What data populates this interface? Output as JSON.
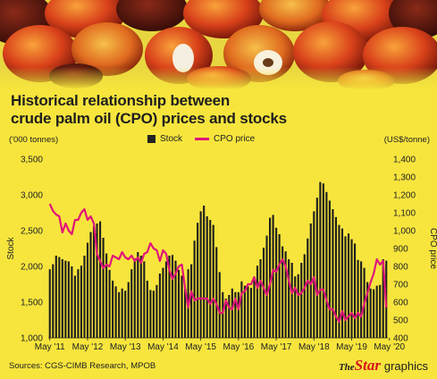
{
  "title_lines": [
    "Historical relationship between",
    "crude palm oil (CPO) prices and stocks"
  ],
  "units": {
    "left": "('000 tonnes)",
    "right": "(US$/tonne)"
  },
  "legend": {
    "stock": "Stock",
    "cpo": "CPO price"
  },
  "source": "Sources: CGS-CIMB Research, MPOB",
  "brand": {
    "the": "The",
    "star": "Star",
    "graphics": "graphics"
  },
  "colors": {
    "background": "#f7e53d",
    "bars": "#1e1e1e",
    "line": "#e0157a"
  },
  "chart_data": {
    "type": "bar+line",
    "left_axis": {
      "label": "Stock",
      "ylim": [
        1000,
        3500
      ],
      "ticks": [
        "1,000",
        "1,500",
        "2,000",
        "2,500",
        "3,000",
        "3,500"
      ]
    },
    "right_axis": {
      "label": "CPO price",
      "ylim": [
        400,
        1400
      ],
      "ticks": [
        "400",
        "500",
        "600",
        "700",
        "800",
        "900",
        "1,000",
        "1,100",
        "1,200",
        "1,300",
        "1,400"
      ]
    },
    "x_ticks": [
      "May '11",
      "May '12",
      "May '13",
      "May '14",
      "May '15",
      "May '16",
      "May '17",
      "May '18",
      "May '19",
      "May '20"
    ],
    "start": "May 2011",
    "series": [
      {
        "name": "Stock",
        "axis": "left",
        "values": [
          1960,
          2030,
          2150,
          2130,
          2100,
          2080,
          2070,
          2000,
          1870,
          1960,
          2010,
          2150,
          2330,
          2480,
          2560,
          2600,
          2630,
          2400,
          2180,
          1950,
          1800,
          1720,
          1640,
          1690,
          1660,
          1780,
          1960,
          2110,
          2200,
          2150,
          2070,
          1800,
          1670,
          1660,
          1740,
          1900,
          1980,
          2070,
          2150,
          2160,
          2080,
          1950,
          1870,
          1690,
          1960,
          2030,
          2360,
          2610,
          2770,
          2850,
          2700,
          2650,
          2580,
          2270,
          1920,
          1640,
          1550,
          1600,
          1690,
          1640,
          1640,
          1790,
          1730,
          1720,
          1700,
          1840,
          2010,
          2100,
          2260,
          2430,
          2680,
          2720,
          2540,
          2450,
          2280,
          2210,
          2100,
          2050,
          1860,
          1890,
          2050,
          2170,
          2390,
          2600,
          2770,
          2960,
          3180,
          3160,
          3040,
          2920,
          2800,
          2690,
          2580,
          2530,
          2420,
          2460,
          2380,
          2320,
          2090,
          2070,
          1980,
          1780,
          1690,
          1680,
          1730,
          1740,
          2100,
          2080
        ]
      },
      {
        "name": "CPO price",
        "axis": "right",
        "values": [
          1150,
          1110,
          1090,
          1080,
          990,
          1040,
          1000,
          980,
          1060,
          1060,
          1100,
          1120,
          1060,
          1080,
          1040,
          870,
          830,
          790,
          810,
          800,
          860,
          850,
          840,
          880,
          850,
          840,
          860,
          830,
          850,
          820,
          870,
          880,
          930,
          900,
          890,
          830,
          890,
          870,
          780,
          730,
          760,
          800,
          810,
          680,
          570,
          660,
          610,
          620,
          620,
          620,
          620,
          590,
          620,
          590,
          540,
          540,
          610,
          570,
          560,
          620,
          560,
          650,
          660,
          700,
          700,
          740,
          680,
          720,
          680,
          640,
          700,
          780,
          770,
          810,
          840,
          800,
          720,
          650,
          680,
          640,
          650,
          680,
          720,
          700,
          740,
          640,
          670,
          670,
          610,
          560,
          560,
          520,
          490,
          550,
          500,
          520,
          540,
          510,
          540,
          520,
          590,
          650,
          710,
          760,
          840,
          810,
          830,
          570
        ]
      }
    ]
  }
}
